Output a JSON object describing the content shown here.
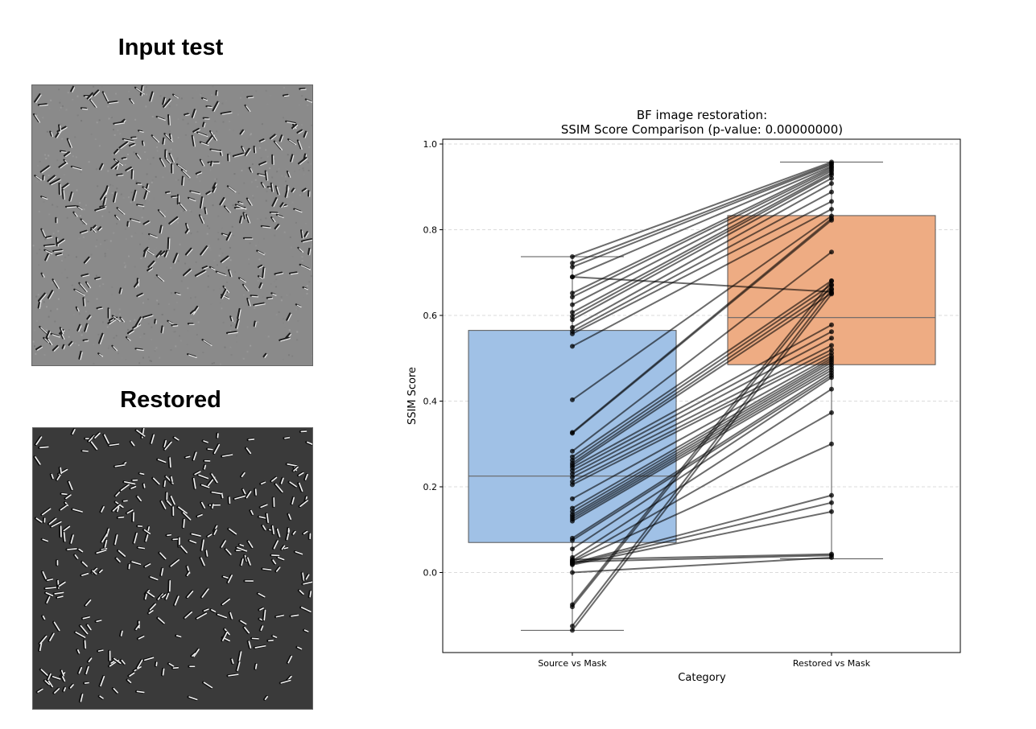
{
  "panels": {
    "input_title": "Input test",
    "restored_title": "Restored"
  },
  "colors": {
    "source_box": "#a0c1e6",
    "restored_box": "#eeac83",
    "input_background": "#8a8a8a",
    "restored_background": "#3a3a3a",
    "lines": "#000000"
  },
  "chart_data": {
    "type": "box",
    "title": "BF image restoration:",
    "subtitle": "SSIM Score Comparison (p-value: 0.00000000)",
    "xlabel": "Category",
    "ylabel": "SSIM Score",
    "categories": [
      "Source vs Mask",
      "Restored vs Mask"
    ],
    "ylim": [
      -0.18,
      1.02
    ],
    "yticks": [
      0.0,
      0.2,
      0.4,
      0.6,
      0.8,
      1.0
    ],
    "ytick_labels": [
      "0.0",
      "0.2",
      "0.4",
      "0.6",
      "0.8",
      "1.0"
    ],
    "grid": "horizontal-dashed",
    "boxes": [
      {
        "category": "Source vs Mask",
        "q1": 0.07,
        "median": 0.225,
        "q3": 0.565,
        "whisker_low": -0.135,
        "whisker_high": 0.737
      },
      {
        "category": "Restored vs Mask",
        "q1": 0.485,
        "median": 0.595,
        "q3": 0.833,
        "whisker_low": 0.032,
        "whisker_high": 0.958
      }
    ],
    "pairs": [
      [
        0.737,
        0.958
      ],
      [
        0.722,
        0.955
      ],
      [
        0.713,
        0.952
      ],
      [
        0.69,
        0.948
      ],
      [
        0.69,
        0.655
      ],
      [
        0.652,
        0.945
      ],
      [
        0.643,
        0.941
      ],
      [
        0.625,
        0.937
      ],
      [
        0.607,
        0.932
      ],
      [
        0.598,
        0.928
      ],
      [
        0.59,
        0.92
      ],
      [
        0.572,
        0.908
      ],
      [
        0.563,
        0.888
      ],
      [
        0.557,
        0.866
      ],
      [
        0.528,
        0.848
      ],
      [
        0.403,
        0.832
      ],
      [
        0.327,
        0.826
      ],
      [
        0.325,
        0.822
      ],
      [
        0.283,
        0.748
      ],
      [
        0.27,
        0.681
      ],
      [
        0.262,
        0.672
      ],
      [
        0.255,
        0.662
      ],
      [
        0.25,
        0.652
      ],
      [
        0.245,
        0.578
      ],
      [
        0.238,
        0.562
      ],
      [
        0.23,
        0.547
      ],
      [
        0.222,
        0.53
      ],
      [
        0.212,
        0.52
      ],
      [
        0.205,
        0.512
      ],
      [
        0.172,
        0.505
      ],
      [
        0.15,
        0.5
      ],
      [
        0.142,
        0.495
      ],
      [
        0.135,
        0.49
      ],
      [
        0.13,
        0.484
      ],
      [
        0.125,
        0.478
      ],
      [
        0.12,
        0.472
      ],
      [
        0.08,
        0.466
      ],
      [
        0.075,
        0.46
      ],
      [
        0.055,
        0.455
      ],
      [
        0.035,
        0.428
      ],
      [
        0.028,
        0.373
      ],
      [
        0.025,
        0.3
      ],
      [
        0.022,
        0.18
      ],
      [
        0.02,
        0.163
      ],
      [
        0.018,
        0.142
      ],
      [
        0.03,
        0.043
      ],
      [
        0.025,
        0.04
      ],
      [
        0.0,
        0.035
      ],
      [
        -0.075,
        0.68
      ],
      [
        -0.08,
        0.67
      ],
      [
        -0.125,
        0.66
      ],
      [
        -0.135,
        0.65
      ]
    ]
  }
}
